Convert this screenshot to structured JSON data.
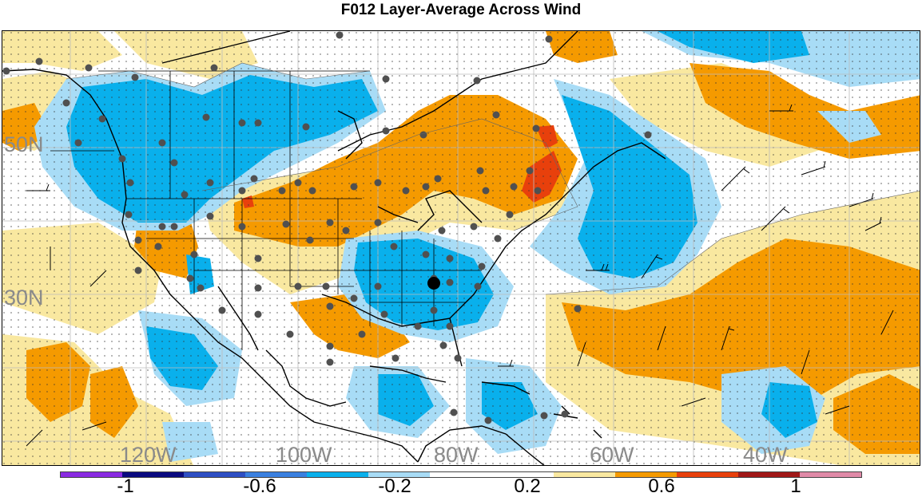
{
  "title": "F012 Layer-Average Across Wind",
  "map": {
    "lat_labels": [
      "50N",
      "30N"
    ],
    "lon_labels": [
      "120W",
      "100W",
      "80W",
      "60W",
      "40W"
    ]
  },
  "legend": {
    "colors": [
      "#8a2be2",
      "#0a0a80",
      "#2e4fc4",
      "#3a80e0",
      "#09b0ec",
      "#a8dcf6",
      "#ffffff",
      "#ffffff",
      "#f9e8a0",
      "#f59a00",
      "#e8400c",
      "#a01818",
      "#e08aa8"
    ],
    "tick_labels": [
      "-1",
      "-0.6",
      "-0.2",
      "0.2",
      "0.6",
      "1"
    ]
  }
}
